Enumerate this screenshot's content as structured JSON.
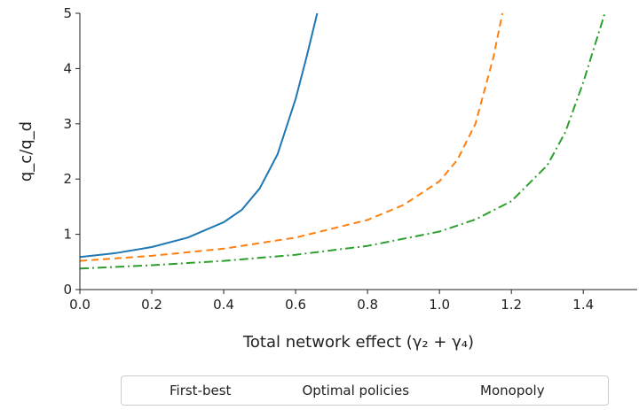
{
  "chart_data": {
    "type": "line",
    "title": "",
    "xlabel": "Total network effect (γ₂ + γ₄)",
    "ylabel": "q_c/q_d",
    "xlim": [
      0,
      1.55
    ],
    "ylim": [
      0,
      5
    ],
    "x_ticks": [
      "0.0",
      "0.2",
      "0.4",
      "0.6",
      "0.8",
      "1.0",
      "1.2",
      "1.4"
    ],
    "y_ticks": [
      "0",
      "1",
      "2",
      "3",
      "4",
      "5"
    ],
    "legend_position": "bottom-center",
    "grid": false,
    "series": [
      {
        "name": "First-best",
        "color": "#1f77b4",
        "dash": "solid",
        "points": [
          [
            0,
            0.59
          ],
          [
            0.1,
            0.66
          ],
          [
            0.2,
            0.77
          ],
          [
            0.3,
            0.94
          ],
          [
            0.4,
            1.22
          ],
          [
            0.45,
            1.44
          ],
          [
            0.5,
            1.83
          ],
          [
            0.55,
            2.45
          ],
          [
            0.6,
            3.45
          ],
          [
            0.63,
            4.2
          ],
          [
            0.66,
            5.0
          ]
        ]
      },
      {
        "name": "Optimal policies",
        "color": "#ff7f0e",
        "dash": "dashed",
        "points": [
          [
            0,
            0.52
          ],
          [
            0.2,
            0.61
          ],
          [
            0.4,
            0.74
          ],
          [
            0.6,
            0.94
          ],
          [
            0.8,
            1.26
          ],
          [
            0.9,
            1.53
          ],
          [
            1.0,
            1.96
          ],
          [
            1.05,
            2.35
          ],
          [
            1.1,
            3.0
          ],
          [
            1.15,
            4.2
          ],
          [
            1.175,
            5.0
          ]
        ]
      },
      {
        "name": "Monopoly",
        "color": "#2ca02c",
        "dash": "dashdot",
        "points": [
          [
            0,
            0.38
          ],
          [
            0.2,
            0.44
          ],
          [
            0.4,
            0.52
          ],
          [
            0.6,
            0.63
          ],
          [
            0.8,
            0.79
          ],
          [
            1.0,
            1.05
          ],
          [
            1.1,
            1.27
          ],
          [
            1.2,
            1.6
          ],
          [
            1.3,
            2.25
          ],
          [
            1.35,
            2.85
          ],
          [
            1.4,
            3.75
          ],
          [
            1.46,
            5.0
          ]
        ]
      }
    ]
  }
}
